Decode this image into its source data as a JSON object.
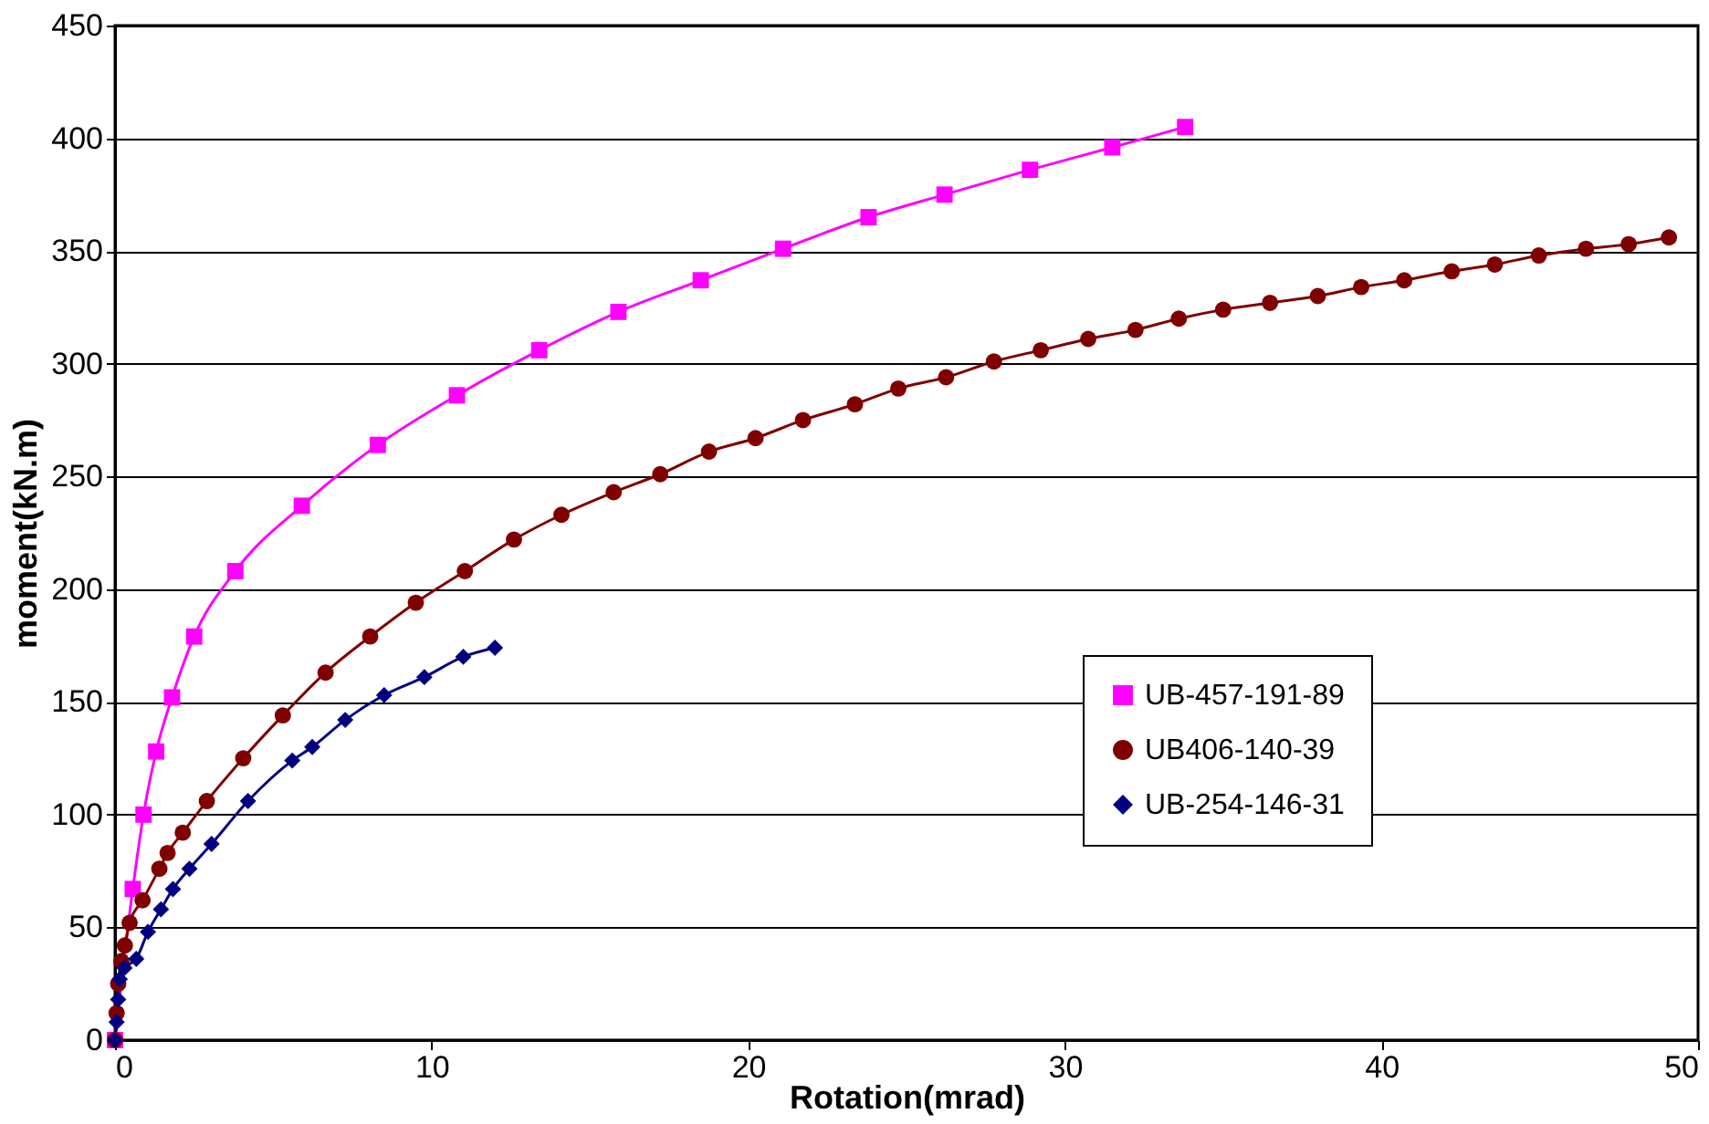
{
  "chart_data": {
    "type": "line",
    "xlabel": "Rotation(mrad)",
    "ylabel": "moment(kN.m)",
    "xlim": [
      0,
      50
    ],
    "xticks": [
      0,
      10,
      20,
      30,
      40,
      50
    ],
    "ylim": [
      0,
      450
    ],
    "yticks": [
      0,
      50,
      100,
      150,
      200,
      250,
      300,
      350,
      400,
      450
    ],
    "grid": "y",
    "legend": "right",
    "line_style": "solid",
    "series": [
      {
        "name": "UB-457-191-89",
        "color": "#ff00ff",
        "marker": "square",
        "x": [
          0,
          0.56,
          0.9,
          1.3,
          1.8,
          2.5,
          3.8,
          5.9,
          8.3,
          10.8,
          13.4,
          15.9,
          18.5,
          21.1,
          23.8,
          26.2,
          28.9,
          31.5,
          33.8
        ],
        "values": [
          0,
          67,
          100,
          128,
          152,
          179,
          208,
          237,
          264,
          286,
          306,
          323,
          337,
          351,
          365,
          375,
          386,
          396,
          405
        ]
      },
      {
        "name": "UB406-140-39",
        "color": "#800000",
        "marker": "circle",
        "x": [
          0,
          0.05,
          0.1,
          0.2,
          0.31,
          0.46,
          0.87,
          1.4,
          1.66,
          2.14,
          2.9,
          4.05,
          5.3,
          6.65,
          8.06,
          9.5,
          11.05,
          12.6,
          14.1,
          15.75,
          17.22,
          18.76,
          20.23,
          21.73,
          23.37,
          24.74,
          26.25,
          27.76,
          29.24,
          30.74,
          32.23,
          33.6,
          35.0,
          36.48,
          37.99,
          39.36,
          40.72,
          42.22,
          43.58,
          44.97,
          46.46,
          47.81,
          49.08
        ],
        "values": [
          0,
          12,
          25,
          35,
          42,
          52,
          62,
          76,
          83,
          92,
          106,
          125,
          144,
          163,
          179,
          194,
          208,
          222,
          233,
          243,
          251,
          261,
          267,
          275,
          282,
          289,
          294,
          301,
          306,
          311,
          315,
          320,
          324,
          327,
          330,
          334,
          337,
          341,
          344,
          348,
          351,
          353,
          356
        ]
      },
      {
        "name": "UB-254-146-31",
        "color": "#000080",
        "marker": "diamond",
        "x": [
          0,
          0.05,
          0.1,
          0.15,
          0.3,
          0.67,
          1.04,
          1.45,
          1.83,
          2.35,
          3.05,
          4.2,
          5.6,
          6.23,
          7.27,
          8.5,
          9.77,
          11.0,
          12.0
        ],
        "values": [
          0,
          8,
          18,
          27,
          32,
          36,
          48,
          58,
          67,
          76,
          87,
          106,
          124,
          130,
          142,
          153,
          161,
          170,
          174
        ]
      }
    ]
  }
}
